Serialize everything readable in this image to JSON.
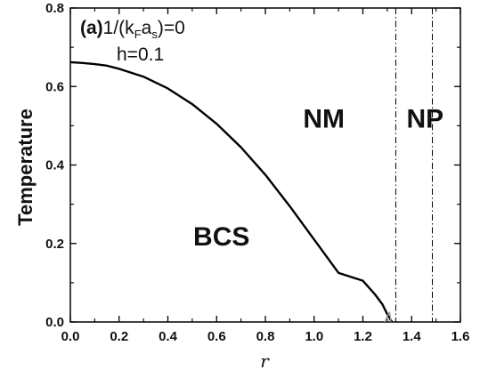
{
  "chart_data": {
    "type": "line",
    "xlabel": "r",
    "ylabel": "Temperature",
    "xlim": [
      0.0,
      1.6
    ],
    "ylim": [
      0.0,
      0.8
    ],
    "xticks": [
      "0.0",
      "0.2",
      "0.4",
      "0.6",
      "0.8",
      "1.0",
      "1.2",
      "1.4",
      "1.6"
    ],
    "yticks": [
      "0.0",
      "0.2",
      "0.4",
      "0.6",
      "0.8"
    ],
    "grid": false,
    "annotation": {
      "panel": "(a)",
      "formula_main": "1/(k",
      "formula_sub_f": "F",
      "formula_mid": "a",
      "formula_sub_s": "s",
      "formula_end": ")=0",
      "h_label": "h=0.1"
    },
    "regions": [
      {
        "label": "BCS",
        "x": 0.62,
        "y": 0.22
      },
      {
        "label": "NM",
        "x": 1.04,
        "y": 0.52
      },
      {
        "label": "NP",
        "x": 1.455,
        "y": 0.52
      }
    ],
    "series": [
      {
        "style": "solid",
        "color": "#000000",
        "x": [
          0.0,
          0.05,
          0.1,
          0.15,
          0.2,
          0.3,
          0.4,
          0.5,
          0.6,
          0.7,
          0.8,
          0.9,
          1.0,
          1.1,
          1.2,
          1.25,
          1.28,
          1.3,
          1.31,
          1.315,
          1.32
        ],
        "y": [
          0.662,
          0.66,
          0.657,
          0.653,
          0.645,
          0.625,
          0.595,
          0.555,
          0.505,
          0.445,
          0.375,
          0.295,
          0.21,
          0.125,
          0.105,
          0.07,
          0.045,
          0.02,
          0.01,
          0.004,
          0.0
        ]
      },
      {
        "style": "solid",
        "color": "#999999",
        "x": [
          1.29,
          1.3,
          1.31,
          1.315
        ],
        "y": [
          0.0,
          0.015,
          0.025,
          0.0
        ]
      }
    ],
    "vertical_lines": [
      {
        "x": 1.335,
        "style": "dash-dot"
      },
      {
        "x": 1.485,
        "style": "dash-dot"
      }
    ]
  }
}
